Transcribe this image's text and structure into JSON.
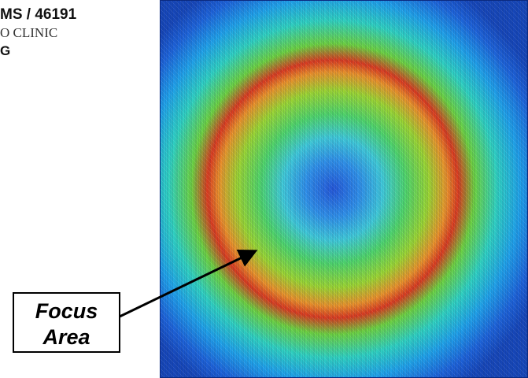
{
  "header": {
    "line1": "MS / 46191",
    "line2": "O CLINIC",
    "line3": "G"
  },
  "callout": {
    "line1": "Focus",
    "line2": "Area"
  }
}
